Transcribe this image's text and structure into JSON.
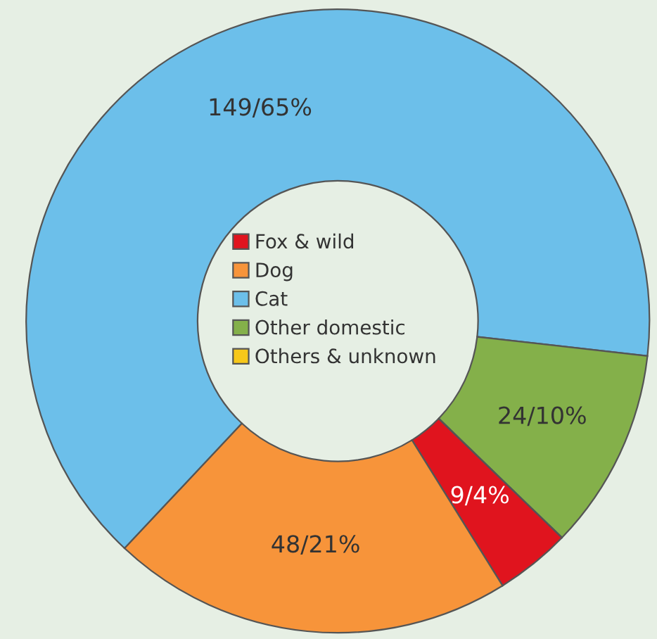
{
  "chart_data": {
    "type": "donut",
    "categories": [
      "Fox & wild",
      "Dog",
      "Cat",
      "Other domestic",
      "Others & unknown"
    ],
    "values": [
      9,
      48,
      149,
      24,
      0
    ],
    "colors": [
      "#e0141e",
      "#f7943a",
      "#6cbfea",
      "#84b04a",
      "#f7c81a"
    ],
    "value_labels": [
      "9/4%",
      "48/21%",
      "149/65%",
      "24/10%",
      null
    ],
    "legend": "center"
  }
}
